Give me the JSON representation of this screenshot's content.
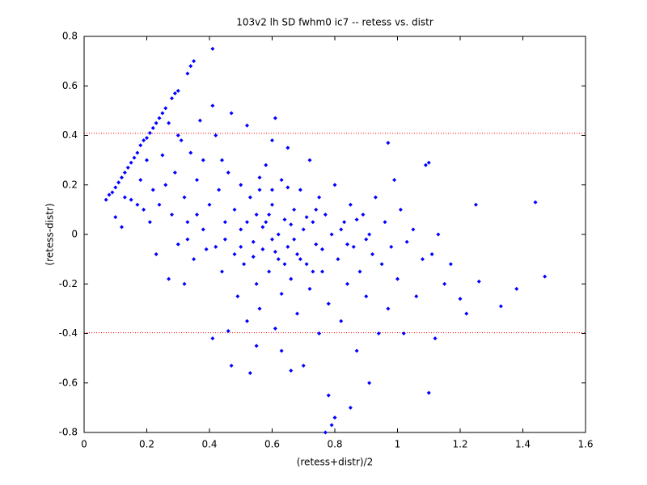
{
  "chart_data": {
    "type": "scatter",
    "title": "103v2 lh SD fwhm0 ic7 -- retess vs. distr",
    "x_label": "(retess+distr)/2",
    "y_label": "(retess-distr)",
    "color": "#0000ff",
    "x": [
      0.07,
      0.08,
      0.09,
      0.1,
      0.11,
      0.12,
      0.13,
      0.14,
      0.15,
      0.16,
      0.17,
      0.18,
      0.19,
      0.2,
      0.21,
      0.22,
      0.23,
      0.24,
      0.25,
      0.26,
      0.28,
      0.29,
      0.3,
      0.33,
      0.34,
      0.35,
      0.41,
      0.1,
      0.12,
      0.13,
      0.15,
      0.17,
      0.18,
      0.19,
      0.2,
      0.21,
      0.22,
      0.23,
      0.24,
      0.25,
      0.26,
      0.27,
      0.27,
      0.28,
      0.29,
      0.3,
      0.31,
      0.32,
      0.32,
      0.33,
      0.34,
      0.35,
      0.36,
      0.37,
      0.38,
      0.38,
      0.39,
      0.4,
      0.41,
      0.41,
      0.42,
      0.43,
      0.44,
      0.45,
      0.46,
      0.46,
      0.47,
      0.47,
      0.48,
      0.48,
      0.49,
      0.5,
      0.5,
      0.51,
      0.52,
      0.52,
      0.53,
      0.53,
      0.54,
      0.55,
      0.55,
      0.56,
      0.56,
      0.57,
      0.58,
      0.58,
      0.59,
      0.6,
      0.6,
      0.61,
      0.61,
      0.62,
      0.62,
      0.63,
      0.63,
      0.64,
      0.65,
      0.65,
      0.66,
      0.66,
      0.67,
      0.68,
      0.68,
      0.69,
      0.7,
      0.7,
      0.71,
      0.72,
      0.72,
      0.73,
      0.74,
      0.75,
      0.75,
      0.76,
      0.77,
      0.77,
      0.78,
      0.78,
      0.79,
      0.79,
      0.8,
      0.8,
      0.81,
      0.82,
      0.83,
      0.84,
      0.85,
      0.85,
      0.86,
      0.87,
      0.88,
      0.89,
      0.9,
      0.91,
      0.91,
      0.92,
      0.93,
      0.94,
      0.95,
      0.96,
      0.97,
      0.97,
      0.98,
      0.99,
      1.0,
      1.01,
      1.02,
      1.03,
      1.05,
      1.06,
      1.08,
      1.09,
      1.1,
      1.1,
      1.11,
      1.12,
      1.13,
      1.15,
      1.17,
      1.2,
      1.22,
      1.25,
      1.26,
      1.33,
      1.38,
      1.44,
      1.47,
      0.45,
      0.5,
      0.52,
      0.54,
      0.57,
      0.59,
      0.61,
      0.64,
      0.66,
      0.67,
      0.69,
      0.71,
      0.73,
      0.74,
      0.76,
      0.82,
      0.84,
      0.87,
      0.9,
      0.55,
      0.6,
      0.63,
      0.42,
      0.44,
      0.36,
      0.3,
      0.33,
      0.56,
      0.6,
      0.65
    ],
    "values": [
      0.14,
      0.16,
      0.17,
      0.19,
      0.21,
      0.23,
      0.25,
      0.27,
      0.29,
      0.31,
      0.33,
      0.36,
      0.38,
      0.39,
      0.41,
      0.43,
      0.45,
      0.47,
      0.49,
      0.51,
      0.55,
      0.57,
      0.58,
      0.65,
      0.68,
      0.7,
      0.75,
      0.07,
      0.03,
      0.15,
      0.14,
      0.12,
      0.22,
      0.1,
      0.3,
      0.05,
      0.18,
      -0.08,
      0.12,
      0.32,
      0.2,
      0.45,
      -0.18,
      0.08,
      0.25,
      -0.04,
      0.38,
      0.15,
      -0.2,
      0.05,
      0.33,
      -0.1,
      0.22,
      0.46,
      0.02,
      0.3,
      -0.06,
      0.12,
      0.52,
      -0.42,
      0.4,
      0.18,
      -0.15,
      0.05,
      -0.39,
      0.25,
      0.49,
      -0.53,
      0.1,
      -0.08,
      -0.25,
      0.2,
      0.02,
      -0.12,
      0.44,
      -0.35,
      0.15,
      -0.56,
      -0.03,
      0.08,
      -0.2,
      0.18,
      -0.3,
      -0.06,
      0.28,
      0.05,
      -0.15,
      0.12,
      -0.02,
      0.47,
      -0.38,
      0.0,
      -0.1,
      0.22,
      -0.24,
      0.06,
      -0.05,
      0.35,
      -0.55,
      -0.18,
      0.1,
      -0.08,
      -0.32,
      0.18,
      -0.53,
      0.02,
      -0.12,
      0.3,
      -0.22,
      0.05,
      -0.04,
      -0.4,
      0.15,
      -0.15,
      -0.8,
      0.08,
      -0.65,
      -0.28,
      -0.77,
      0.0,
      -0.74,
      0.2,
      -0.1,
      -0.35,
      0.05,
      -0.2,
      -0.7,
      0.12,
      -0.05,
      -0.47,
      -0.15,
      0.08,
      -0.25,
      -0.6,
      0.0,
      -0.08,
      0.15,
      -0.4,
      -0.12,
      0.05,
      0.37,
      -0.3,
      -0.05,
      0.22,
      -0.18,
      0.1,
      -0.4,
      -0.03,
      0.02,
      -0.25,
      -0.1,
      0.28,
      0.29,
      -0.64,
      -0.08,
      -0.42,
      0.0,
      -0.2,
      -0.12,
      -0.26,
      -0.32,
      0.12,
      -0.19,
      -0.29,
      -0.22,
      0.13,
      -0.17,
      -0.02,
      -0.05,
      0.05,
      -0.09,
      0.03,
      0.08,
      -0.07,
      -0.12,
      0.04,
      -0.02,
      -0.1,
      0.07,
      -0.15,
      0.1,
      -0.06,
      0.02,
      -0.04,
      0.06,
      -0.02,
      -0.45,
      0.38,
      -0.47,
      -0.05,
      0.3,
      0.08,
      0.4,
      -0.02,
      0.23,
      0.18,
      0.19
    ],
    "reference_lines": [
      0.408,
      -0.397
    ],
    "reference_color": "#ff0000",
    "xlim": [
      0,
      1.6
    ],
    "xticks": [
      0,
      0.2,
      0.4,
      0.6,
      0.8,
      1,
      1.2,
      1.4,
      1.6
    ],
    "ylim": [
      -0.8,
      0.8
    ],
    "yticks": [
      -0.8,
      -0.6,
      -0.4,
      -0.2,
      0,
      0.2,
      0.4,
      0.6,
      0.8
    ]
  }
}
